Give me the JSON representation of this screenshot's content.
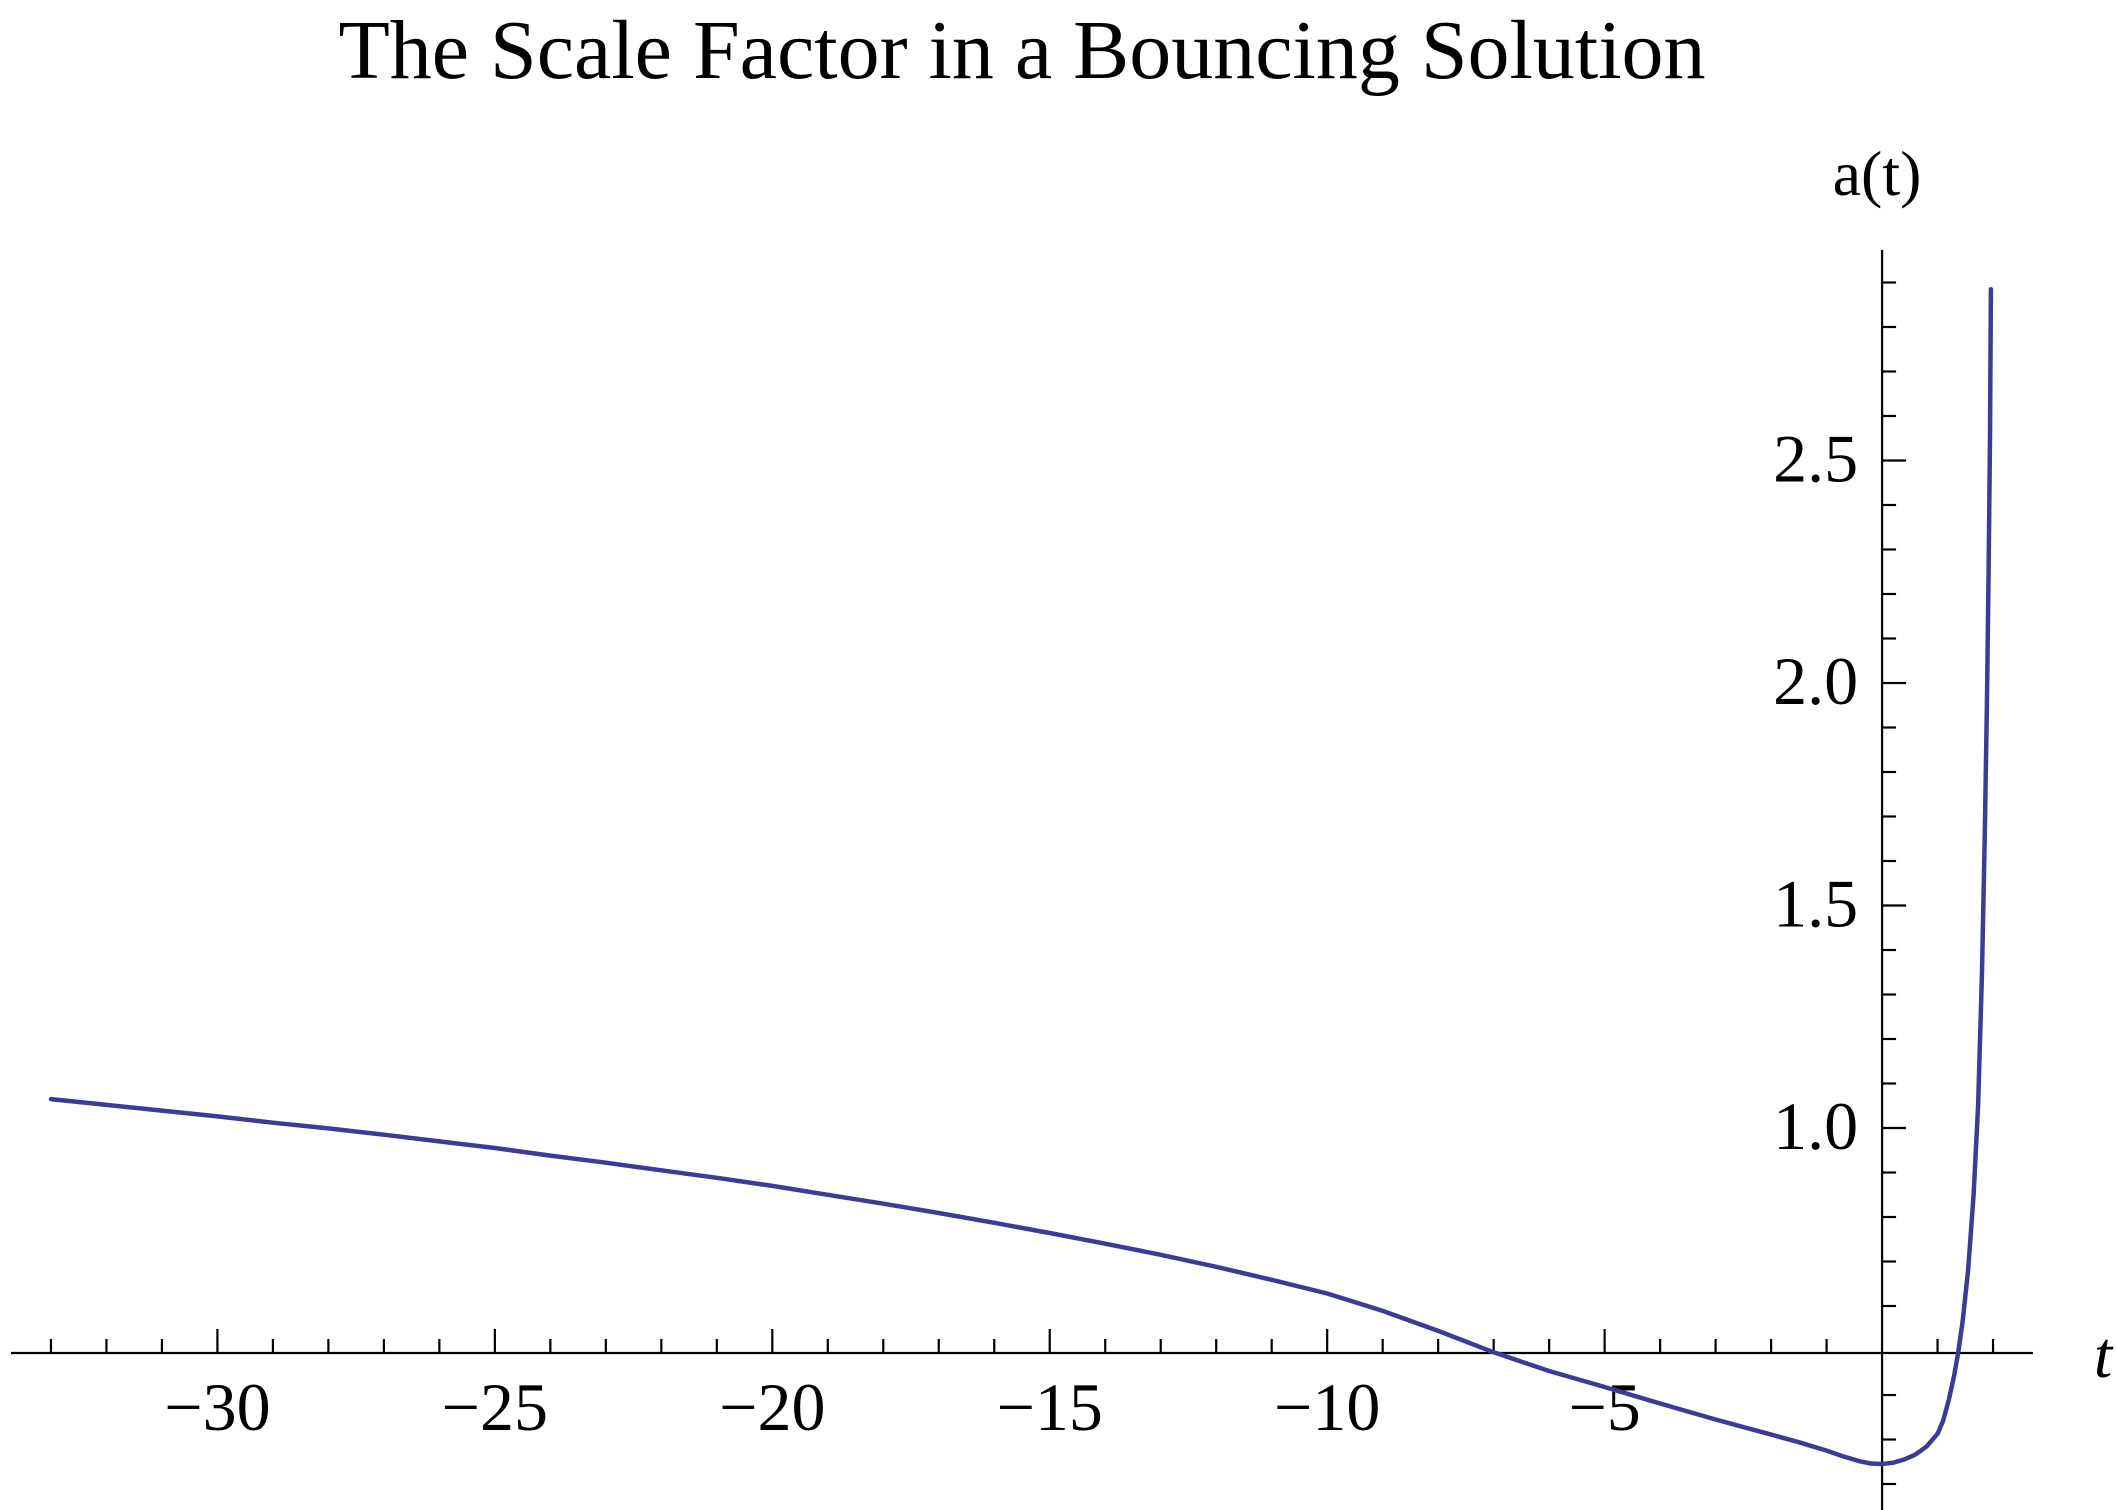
{
  "chart_data": {
    "type": "line",
    "title": "The Scale Factor in a Bouncing Solution",
    "xlabel": "t",
    "ylabel": "a(t)",
    "grid": false,
    "legend": null,
    "axes_cross": {
      "t": 0,
      "a": 0.4944
    },
    "x_axis": {
      "min": -33.72,
      "max": 2.72,
      "major_ticks": [
        -30,
        -25,
        -20,
        -15,
        -10,
        -5
      ],
      "major_tick_labels": [
        "−30",
        "−25",
        "−20",
        "−15",
        "−10",
        "−5"
      ],
      "minor_ticks": [
        -33,
        -32,
        -31,
        -29,
        -28,
        -27,
        -26,
        -24,
        -23,
        -22,
        -21,
        -19,
        -18,
        -17,
        -16,
        -14,
        -13,
        -12,
        -11,
        -9,
        -8,
        -7,
        -6,
        -4,
        -3,
        -2,
        -1,
        1,
        2
      ]
    },
    "y_axis": {
      "min": 0.1416,
      "max": 2.973,
      "major_ticks": [
        1.0,
        1.5,
        2.0,
        2.5
      ],
      "major_tick_labels": [
        "1.0",
        "1.5",
        "2.0",
        "2.5"
      ],
      "minor_ticks": [
        0.2,
        0.3,
        0.4,
        0.6,
        0.7,
        0.8,
        0.9,
        1.1,
        1.2,
        1.3,
        1.4,
        1.6,
        1.7,
        1.8,
        1.9,
        2.1,
        2.2,
        2.3,
        2.4,
        2.6,
        2.7,
        2.8,
        2.9
      ]
    },
    "series": [
      {
        "name": "a(t)",
        "color": "#3C3C96",
        "points": [
          [
            -33.0,
            1.065
          ],
          [
            -32,
            1.052
          ],
          [
            -31,
            1.039
          ],
          [
            -30,
            1.026
          ],
          [
            -29,
            1.012
          ],
          [
            -28,
            0.999
          ],
          [
            -27,
            0.985
          ],
          [
            -26,
            0.97
          ],
          [
            -25,
            0.955
          ],
          [
            -24,
            0.938
          ],
          [
            -23,
            0.922
          ],
          [
            -22,
            0.905
          ],
          [
            -21,
            0.888
          ],
          [
            -20,
            0.87
          ],
          [
            -19,
            0.85
          ],
          [
            -18,
            0.83
          ],
          [
            -17,
            0.809
          ],
          [
            -16,
            0.787
          ],
          [
            -15,
            0.764
          ],
          [
            -14,
            0.74
          ],
          [
            -13,
            0.715
          ],
          [
            -12,
            0.688
          ],
          [
            -11,
            0.659
          ],
          [
            -10,
            0.628
          ],
          [
            -9,
            0.589
          ],
          [
            -8,
            0.544
          ],
          [
            -7,
            0.496
          ],
          [
            -6,
            0.454
          ],
          [
            -5,
            0.418
          ],
          [
            -4,
            0.381
          ],
          [
            -3,
            0.345
          ],
          [
            -2.5,
            0.328
          ],
          [
            -2,
            0.311
          ],
          [
            -1.5,
            0.294
          ],
          [
            -1,
            0.275
          ],
          [
            -0.7,
            0.262
          ],
          [
            -0.4,
            0.251
          ],
          [
            -0.2,
            0.246
          ],
          [
            0,
            0.245
          ],
          [
            0.2,
            0.248
          ],
          [
            0.4,
            0.255
          ],
          [
            0.6,
            0.266
          ],
          [
            0.8,
            0.284
          ],
          [
            1.0,
            0.313
          ],
          [
            1.1,
            0.342
          ],
          [
            1.2,
            0.388
          ],
          [
            1.3,
            0.444
          ],
          [
            1.37,
            0.494
          ],
          [
            1.45,
            0.563
          ],
          [
            1.55,
            0.68
          ],
          [
            1.65,
            0.85
          ],
          [
            1.73,
            1.05
          ],
          [
            1.8,
            1.35
          ],
          [
            1.85,
            1.65
          ],
          [
            1.89,
            1.95
          ],
          [
            1.92,
            2.25
          ],
          [
            1.945,
            2.55
          ],
          [
            1.962,
            2.885
          ]
        ]
      }
    ]
  },
  "colors": {
    "curve": "#3C3C96",
    "axis": "#000000",
    "text": "#000000",
    "background": "#FFFFFF"
  }
}
